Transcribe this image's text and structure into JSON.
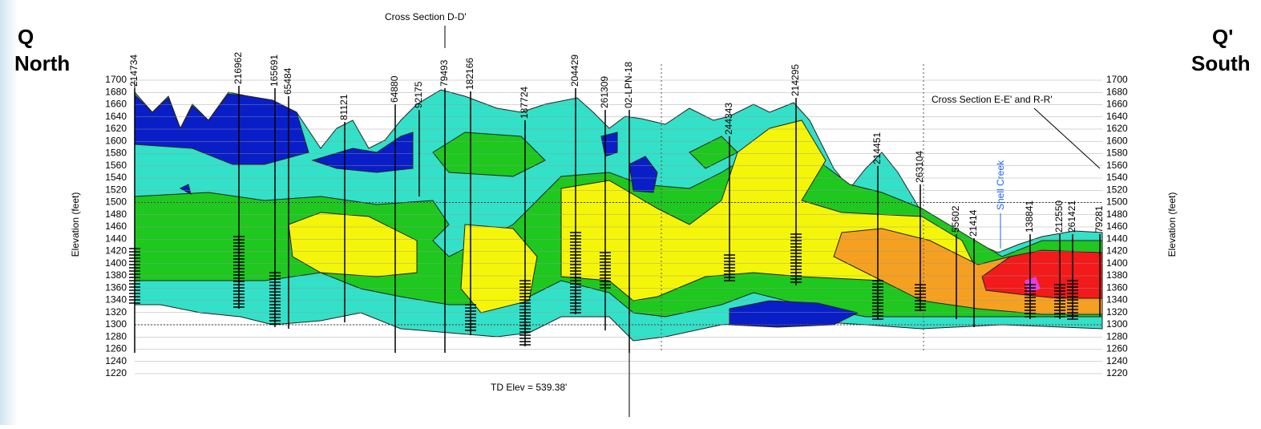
{
  "header": {
    "left": {
      "letter": "Q",
      "direction": "North"
    },
    "right": {
      "letter": "Q'",
      "direction": "South"
    }
  },
  "annotations": {
    "cross_section_dd": "Cross Section D-D'",
    "cross_section_ee_rr": "Cross Section E-E' and R-R'",
    "creek": "Shell Creek",
    "td_elev": "TD Elev = 539.38'"
  },
  "axis": {
    "label": "Elevation (feet)",
    "ticks": [
      1700,
      1680,
      1660,
      1640,
      1620,
      1600,
      1580,
      1560,
      1540,
      1520,
      1500,
      1480,
      1460,
      1440,
      1420,
      1400,
      1380,
      1360,
      1340,
      1320,
      1300,
      1280,
      1260,
      1240,
      1220
    ]
  },
  "wells": [
    "214734",
    "216962",
    "165691",
    "65484",
    "81121",
    "64880",
    "92175",
    "79493",
    "182166",
    "187724",
    "204429",
    "261309",
    "02-LPN-18",
    "244343",
    "214295",
    "214451",
    "263104",
    "55602",
    "21414",
    "138841",
    "212550",
    "261421",
    "79281"
  ]
}
